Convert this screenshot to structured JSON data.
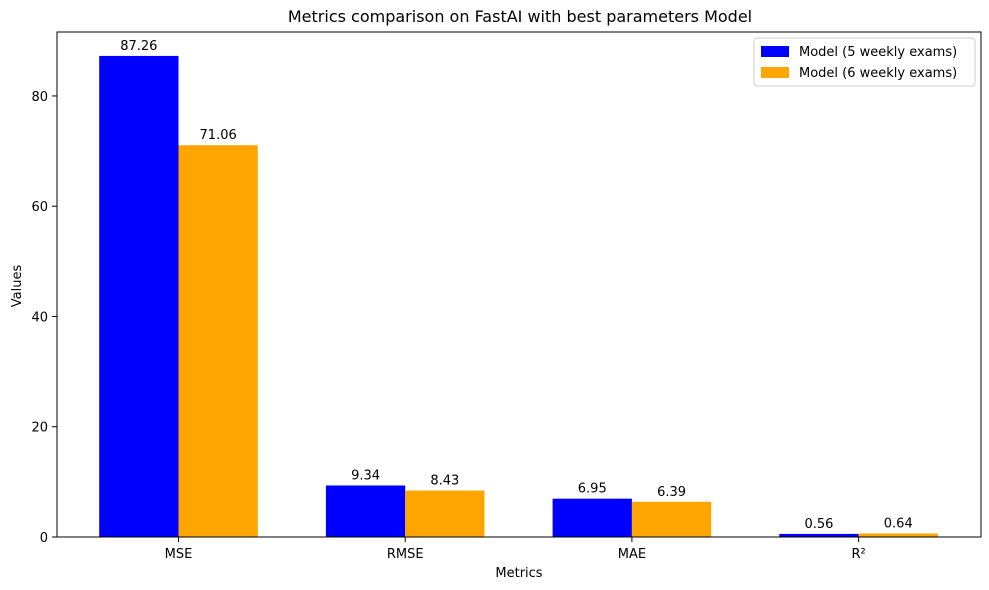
{
  "chart_data": {
    "type": "bar",
    "title": "Metrics comparison on FastAI with best parameters Model",
    "xlabel": "Metrics",
    "ylabel": "Values",
    "categories": [
      "MSE",
      "RMSE",
      "MAE",
      "R²"
    ],
    "series": [
      {
        "name": "Model (5 weekly exams)",
        "color": "#0000ff",
        "values": [
          87.26,
          9.34,
          6.95,
          0.56
        ],
        "labels": [
          "87.26",
          "9.34",
          "6.95",
          "0.56"
        ]
      },
      {
        "name": "Model (6 weekly exams)",
        "color": "#ffa500",
        "values": [
          71.06,
          8.43,
          6.39,
          0.64
        ],
        "labels": [
          "71.06",
          "8.43",
          "6.39",
          "0.64"
        ]
      }
    ],
    "ylim": [
      0,
      91.6
    ],
    "yticks": [
      0,
      20,
      40,
      60,
      80
    ],
    "ytick_labels": [
      "0",
      "20",
      "40",
      "60",
      "80"
    ],
    "grid": false,
    "legend_position": "top-right"
  }
}
